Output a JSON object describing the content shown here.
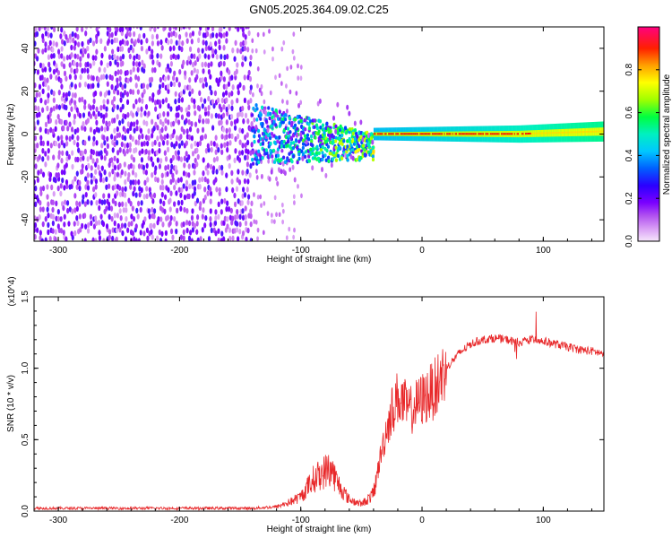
{
  "figure": {
    "title": "GN05.2025.364.09.02.C25"
  },
  "chart_data": [
    {
      "type": "heatmap",
      "xlabel": "Height of straight line (km)",
      "ylabel": "Frequency (Hz)",
      "xlim": [
        -320,
        150
      ],
      "ylim": [
        -50,
        50
      ],
      "xticks": [
        -300,
        -200,
        -100,
        0,
        100
      ],
      "yticks": [
        -40,
        -20,
        0,
        20,
        40
      ],
      "colorbar": {
        "label": "Normalized spectral amplitude",
        "range": [
          0.0,
          1.0
        ],
        "ticks": [
          "0.0",
          "0.2",
          "0.4",
          "0.6",
          "0.8"
        ],
        "tick_values": [
          0.0,
          0.2,
          0.4,
          0.6,
          0.8
        ],
        "colormap": [
          "#f6e6fb",
          "#c060f0",
          "#7a00ff",
          "#0040ff",
          "#00b0ff",
          "#00f0c0",
          "#00ff40",
          "#a0ff00",
          "#ffff00",
          "#ffb000",
          "#ff4000",
          "#ff0000",
          "#ff0080"
        ]
      },
      "description_regions": [
        {
          "x_range": [
            -320,
            -140
          ],
          "freq_range": [
            -50,
            50
          ],
          "amplitude": 0.12,
          "pattern": "broadband noise"
        },
        {
          "x_range": [
            -140,
            -40
          ],
          "freq_range": [
            -12,
            12
          ],
          "amplitude": 0.25,
          "pattern": "converging band"
        },
        {
          "x_range": [
            -40,
            150
          ],
          "freq_center": 0,
          "amplitude": 0.9,
          "pattern": "narrow carrier line"
        }
      ]
    },
    {
      "type": "line",
      "xlabel": "Height of straight line (km)",
      "ylabel": "SNR (10 * v/v)",
      "y_multiplier": "(x10^4)",
      "xlim": [
        -320,
        150
      ],
      "ylim": [
        0.0,
        1.5
      ],
      "xticks": [
        -300,
        -200,
        -100,
        0,
        100
      ],
      "yticks": [
        0.0,
        0.5,
        1.0,
        1.5
      ],
      "ytick_labels": [
        "0.0",
        "0.5",
        "1.0",
        "1.5"
      ],
      "color": "#e8282a",
      "series_points": {
        "x": [
          -320,
          -260,
          -200,
          -140,
          -120,
          -110,
          -100,
          -90,
          -80,
          -75,
          -70,
          -60,
          -50,
          -45,
          -40,
          -35,
          -30,
          -25,
          -20,
          -15,
          -10,
          0,
          10,
          20,
          30,
          40,
          50,
          60,
          70,
          80,
          90,
          100,
          110,
          120,
          130,
          140,
          150
        ],
        "y": [
          0.02,
          0.02,
          0.02,
          0.02,
          0.03,
          0.06,
          0.1,
          0.22,
          0.28,
          0.3,
          0.2,
          0.08,
          0.05,
          0.08,
          0.12,
          0.35,
          0.55,
          0.7,
          0.8,
          0.75,
          0.7,
          0.78,
          0.85,
          1.0,
          1.1,
          1.17,
          1.2,
          1.21,
          1.2,
          1.18,
          1.2,
          1.19,
          1.17,
          1.15,
          1.13,
          1.12,
          1.1
        ]
      }
    }
  ]
}
